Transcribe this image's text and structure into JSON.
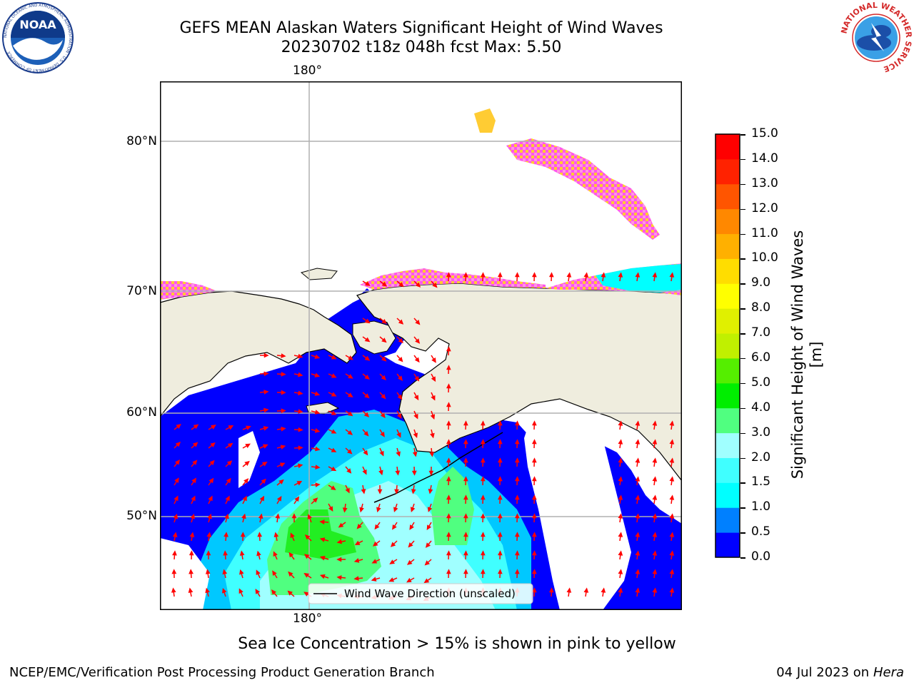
{
  "header": {
    "title_line_1": "GEFS MEAN Alaskan Waters Significant Height of Wind Waves",
    "title_line_2": "20230702 t18z 048h fcst   Max: 5.50"
  },
  "logos": {
    "left": {
      "name": "noaa-logo",
      "text": "NOAA",
      "ring_text": "NATIONAL OCEANIC AND ATMOSPHERIC ADMINISTRATION · U.S. DEPARTMENT OF COMMERCE"
    },
    "right": {
      "name": "nws-logo",
      "ring_text": "NATIONAL WEATHER SERVICE"
    }
  },
  "map": {
    "lon_label_top": "180°",
    "lon_label_bottom": "180°",
    "lat_labels": [
      "80°N",
      "70°N",
      "60°N",
      "50°N"
    ],
    "legend": {
      "label": "Wind Wave Direction (unscaled)"
    },
    "colors": {
      "land": "#efedde",
      "ocean_low": "#0000ff",
      "ocean_mid": "#00ffff",
      "green": "#22ee22",
      "arrow": "#ff0000",
      "ice_pink": "#ff44ee",
      "ice_yellow": "#ffcc33"
    }
  },
  "colorbar": {
    "label": "Significant Height of Wind Waves [m]",
    "ticks": [
      "0.0",
      "0.5",
      "1.0",
      "1.5",
      "2.0",
      "3.0",
      "4.0",
      "5.0",
      "6.0",
      "7.0",
      "8.0",
      "9.0",
      "10.0",
      "11.0",
      "12.0",
      "13.0",
      "14.0",
      "15.0"
    ],
    "colors": [
      "#0000ff",
      "#0080ff",
      "#00ffff",
      "#40ffff",
      "#a0ffff",
      "#50ff80",
      "#00ee00",
      "#55ee00",
      "#c0f000",
      "#e0f000",
      "#ffff00",
      "#ffdd00",
      "#ffb000",
      "#ff8800",
      "#ff5500",
      "#ff2200",
      "#ff0000"
    ]
  },
  "notes": {
    "ice": "Sea Ice Concentration > 15% is shown in pink to yellow",
    "footer_left": "NCEP/EMC/Verification Post Processing Product Generation Branch",
    "footer_date": "04 Jul 2023 on ",
    "footer_host": "Hera"
  }
}
